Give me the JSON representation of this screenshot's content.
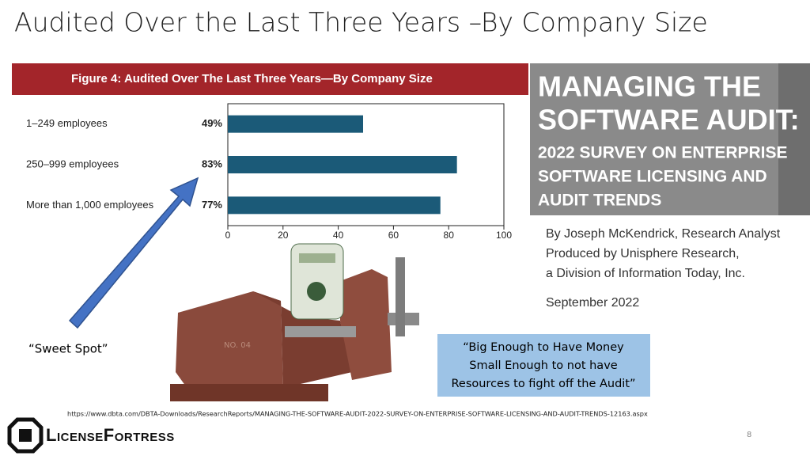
{
  "title": "Audited Over the Last Three Years –By Company Size",
  "chart_data": {
    "type": "bar",
    "orientation": "horizontal",
    "title": "Figure 4: Audited Over The Last Three Years—By Company Size",
    "categories": [
      "1–249 employees",
      "250–999 employees",
      "More than 1,000 employees"
    ],
    "values": [
      49,
      83,
      77
    ],
    "value_labels": [
      "49%",
      "83%",
      "77%"
    ],
    "color": "#1b5a78",
    "xlim": [
      0,
      100
    ],
    "xticks": [
      0,
      20,
      40,
      60,
      80,
      100
    ]
  },
  "report_cover": {
    "heading_lines": [
      "MANAGING THE",
      "SOFTWARE AUDIT:"
    ],
    "subtitle_lines": [
      "2022 SURVEY ON ENTERPRISE",
      "SOFTWARE LICENSING AND",
      "AUDIT TRENDS"
    ],
    "byline_lines": [
      "By Joseph McKendrick, Research Analyst",
      "Produced by Unisphere Research,",
      "a Division of Information Today, Inc."
    ],
    "date": "September 2022"
  },
  "annotation": "“Sweet Spot”",
  "callout_lines": [
    "“Big Enough to Have Money",
    "Small Enough to not have",
    "Resources to fight off the Audit”"
  ],
  "source_url": "https://www.dbta.com/DBTA-Downloads/ResearchReports/MANAGING-THE-SOFTWARE-AUDIT-2022-SURVEY-ON-ENTERPRISE-SOFTWARE-LICENSING-AND-AUDIT-TRENDS-12163.aspx",
  "logo": "LicenseFortress",
  "page_number": "8"
}
